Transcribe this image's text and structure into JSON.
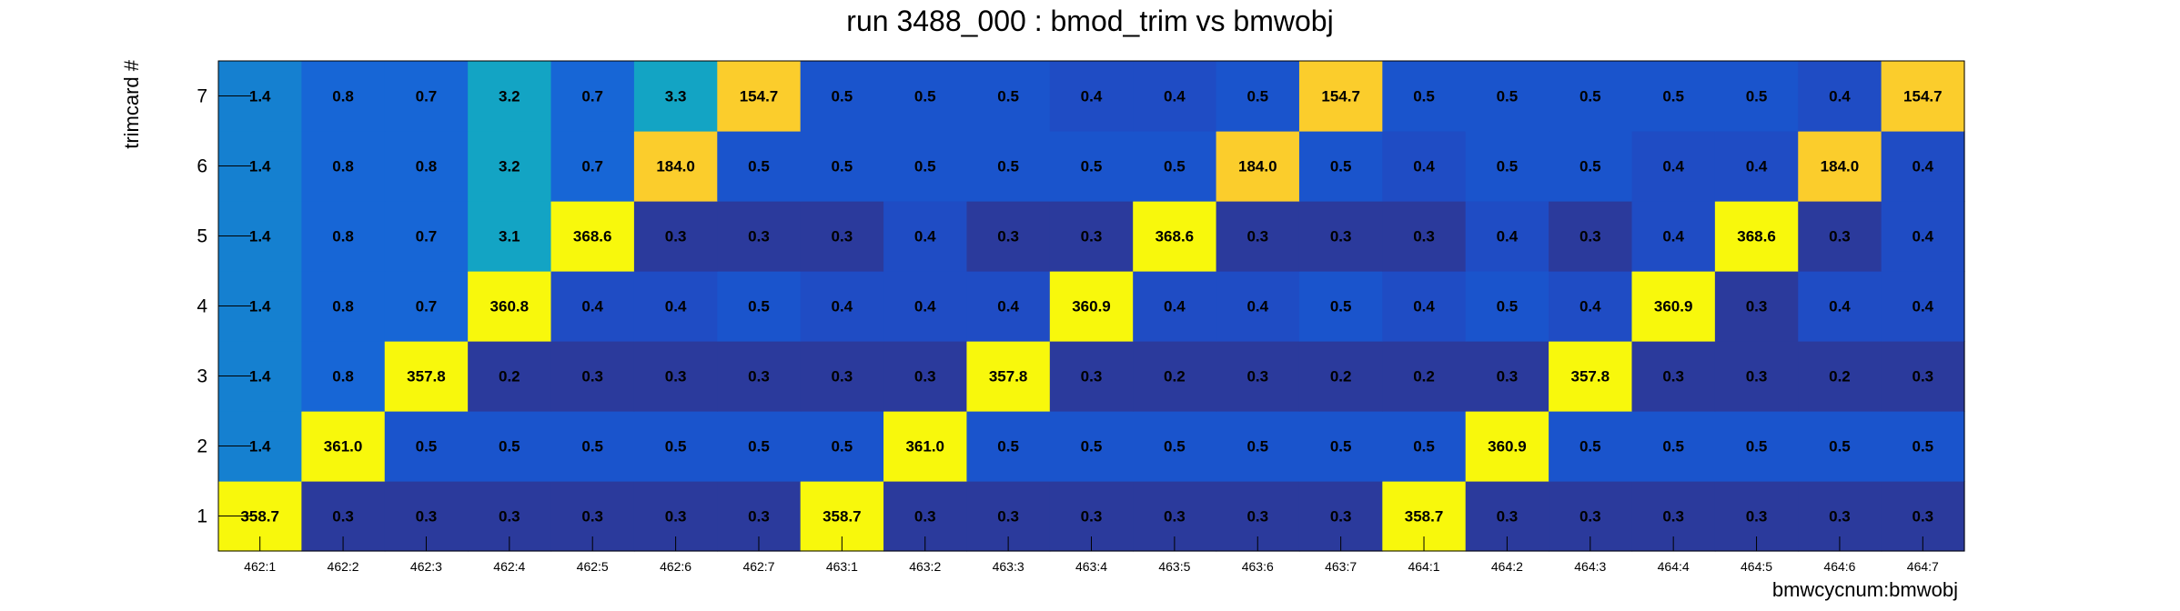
{
  "chart_data": {
    "type": "heatmap",
    "title": "run 3488_000 : bmod_trim vs bmwobj",
    "xlabel": "bmwcycnum:bmwobj",
    "ylabel": "trimcard #",
    "x_categories": [
      "462:1",
      "462:2",
      "462:3",
      "462:4",
      "462:5",
      "462:6",
      "462:7",
      "463:1",
      "463:2",
      "463:3",
      "463:4",
      "463:5",
      "463:6",
      "463:7",
      "464:1",
      "464:2",
      "464:3",
      "464:4",
      "464:5",
      "464:6",
      "464:7"
    ],
    "y_categories": [
      "1",
      "2",
      "3",
      "4",
      "5",
      "6",
      "7"
    ],
    "values": [
      [
        "358.7",
        "0.3",
        "0.3",
        "0.3",
        "0.3",
        "0.3",
        "0.3",
        "358.7",
        "0.3",
        "0.3",
        "0.3",
        "0.3",
        "0.3",
        "0.3",
        "358.7",
        "0.3",
        "0.3",
        "0.3",
        "0.3",
        "0.3",
        "0.3"
      ],
      [
        "1.4",
        "361.0",
        "0.5",
        "0.5",
        "0.5",
        "0.5",
        "0.5",
        "0.5",
        "361.0",
        "0.5",
        "0.5",
        "0.5",
        "0.5",
        "0.5",
        "0.5",
        "360.9",
        "0.5",
        "0.5",
        "0.5",
        "0.5",
        "0.5"
      ],
      [
        "1.4",
        "0.8",
        "357.8",
        "0.2",
        "0.3",
        "0.3",
        "0.3",
        "0.3",
        "0.3",
        "357.8",
        "0.3",
        "0.2",
        "0.3",
        "0.2",
        "0.2",
        "0.3",
        "357.8",
        "0.3",
        "0.3",
        "0.2",
        "0.3"
      ],
      [
        "1.4",
        "0.8",
        "0.7",
        "360.8",
        "0.4",
        "0.4",
        "0.5",
        "0.4",
        "0.4",
        "0.4",
        "360.9",
        "0.4",
        "0.4",
        "0.5",
        "0.4",
        "0.5",
        "0.4",
        "360.9",
        "0.3",
        "0.4",
        "0.4"
      ],
      [
        "1.4",
        "0.8",
        "0.7",
        "3.1",
        "368.6",
        "0.3",
        "0.3",
        "0.3",
        "0.4",
        "0.3",
        "0.3",
        "368.6",
        "0.3",
        "0.3",
        "0.3",
        "0.4",
        "0.3",
        "0.4",
        "368.6",
        "0.3",
        "0.4"
      ],
      [
        "1.4",
        "0.8",
        "0.8",
        "3.2",
        "0.7",
        "184.0",
        "0.5",
        "0.5",
        "0.5",
        "0.5",
        "0.5",
        "0.5",
        "184.0",
        "0.5",
        "0.4",
        "0.5",
        "0.5",
        "0.4",
        "0.4",
        "184.0",
        "0.4"
      ],
      [
        "1.4",
        "0.8",
        "0.7",
        "3.2",
        "0.7",
        "3.3",
        "154.7",
        "0.5",
        "0.5",
        "0.5",
        "0.4",
        "0.4",
        "0.5",
        "154.7",
        "0.5",
        "0.5",
        "0.5",
        "0.5",
        "0.5",
        "0.4",
        "154.7"
      ]
    ],
    "colors": {
      "darkest": "#2b3a9c",
      "dark": "#1f4cc4",
      "mid": "#1560d8",
      "light": "#1580d0",
      "cyan": "#13a4c4",
      "yellow_orange": "#fbcd2c",
      "yellow": "#f8f80c"
    }
  }
}
